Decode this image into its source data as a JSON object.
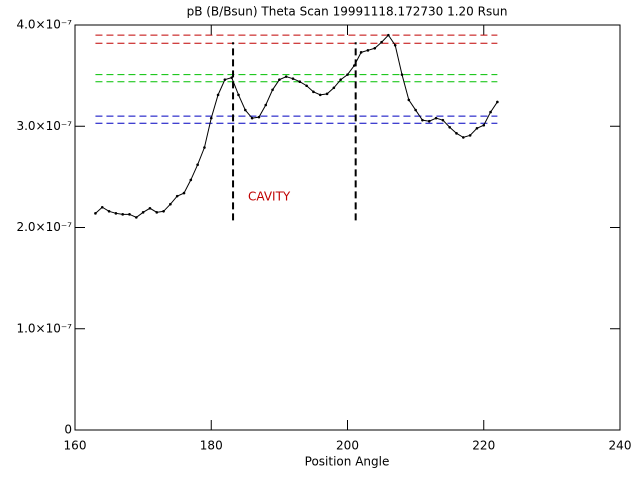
{
  "chart_data": {
    "type": "line",
    "title": "pB (B/Bsun) Theta Scan 19991118.172730 1.20 Rsun",
    "x_label": "Position Angle",
    "x": [
      163,
      164,
      165,
      166,
      167,
      168,
      169,
      170,
      171,
      172,
      173,
      174,
      175,
      176,
      177,
      178,
      179,
      180,
      181,
      182,
      183,
      184,
      185,
      186,
      187,
      188,
      189,
      190,
      191,
      192,
      193,
      194,
      195,
      196,
      197,
      198,
      199,
      200,
      201,
      202,
      203,
      204,
      205,
      206,
      207,
      208,
      209,
      210,
      211,
      212,
      213,
      214,
      215,
      216,
      217,
      218,
      219,
      220,
      221,
      222
    ],
    "series": [
      {
        "color": "#000000",
        "values": [
          2.14e-07,
          2.2e-07,
          2.16e-07,
          2.14e-07,
          2.13e-07,
          2.13e-07,
          2.1e-07,
          2.15e-07,
          2.19e-07,
          2.15e-07,
          2.16e-07,
          2.23e-07,
          2.31e-07,
          2.34e-07,
          2.47e-07,
          2.62e-07,
          2.79e-07,
          3.08e-07,
          3.31e-07,
          3.46e-07,
          3.48e-07,
          3.31e-07,
          3.16e-07,
          3.08e-07,
          3.09e-07,
          3.21e-07,
          3.36e-07,
          3.46e-07,
          3.49e-07,
          3.47e-07,
          3.44e-07,
          3.4e-07,
          3.34e-07,
          3.31e-07,
          3.32e-07,
          3.38e-07,
          3.46e-07,
          3.51e-07,
          3.6e-07,
          3.73e-07,
          3.75e-07,
          3.77e-07,
          3.83e-07,
          3.9e-07,
          3.8e-07,
          3.51e-07,
          3.26e-07,
          3.16e-07,
          3.06e-07,
          3.05e-07,
          3.08e-07,
          3.06e-07,
          2.99e-07,
          2.93e-07,
          2.89e-07,
          2.91e-07,
          2.98e-07,
          3.01e-07,
          3.14e-07,
          3.24e-07
        ]
      }
    ],
    "hlines": [
      {
        "y": 3.9e-07,
        "color": "#c00000"
      },
      {
        "y": 3.82e-07,
        "color": "#c00000"
      },
      {
        "y": 3.51e-07,
        "color": "#00c000"
      },
      {
        "y": 3.44e-07,
        "color": "#00c000"
      },
      {
        "y": 3.1e-07,
        "color": "#0000c0"
      },
      {
        "y": 3.03e-07,
        "color": "#0000c0"
      }
    ],
    "hline_xlim": [
      163,
      222
    ],
    "vlines": [
      183.2,
      201.2
    ],
    "vline_ylim": [
      2.07e-07,
      3.83e-07
    ],
    "annotation": {
      "text": "CAVITY",
      "x": 188.5,
      "y": 2.3e-07,
      "color": "#c00000"
    },
    "xlim": [
      160,
      240
    ],
    "xticks": [
      160,
      180,
      200,
      220,
      240
    ],
    "ylim": [
      0,
      4e-07
    ],
    "yticks": [
      0,
      {
        "value": 1e-07,
        "label": "1.0×10⁻⁷"
      },
      {
        "value": 2e-07,
        "label": "2.0×10⁻⁷"
      },
      {
        "value": 3e-07,
        "label": "3.0×10⁻⁷"
      },
      {
        "value": 4e-07,
        "label": "4.0×10⁻⁷"
      }
    ]
  }
}
